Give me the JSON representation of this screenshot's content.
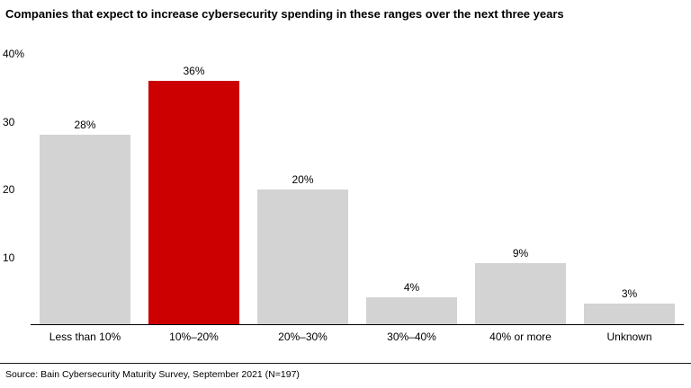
{
  "title": "Companies that expect to increase cybersecurity spending in these ranges over the next three years",
  "source_note": "Source: Bain Cybersecurity Maturity Survey, September 2021 (N=197)",
  "colors": {
    "bar": "#d3d3d3",
    "highlight": "#cc0000",
    "axis": "#000000",
    "text": "#000000"
  },
  "chart_data": {
    "type": "bar",
    "title": "Companies that expect to increase cybersecurity spending in these ranges over the next three years",
    "categories": [
      "Less than 10%",
      "10%–20%",
      "20%–30%",
      "30%–40%",
      "40% or more",
      "Unknown"
    ],
    "values": [
      28,
      36,
      20,
      4,
      9,
      3
    ],
    "value_labels": [
      "28%",
      "36%",
      "20%",
      "4%",
      "9%",
      "3%"
    ],
    "highlight_index": 1,
    "highlight_category": "10%–20%",
    "xlabel": "",
    "ylabel": "",
    "ylim": [
      0,
      40
    ],
    "yticks": [
      {
        "value": 40,
        "label": "40%"
      },
      {
        "value": 30,
        "label": "30"
      },
      {
        "value": 20,
        "label": "20"
      },
      {
        "value": 10,
        "label": "10"
      }
    ],
    "grid": false,
    "legend": false,
    "source": "Source: Bain Cybersecurity Maturity Survey, September 2021 (N=197)"
  }
}
